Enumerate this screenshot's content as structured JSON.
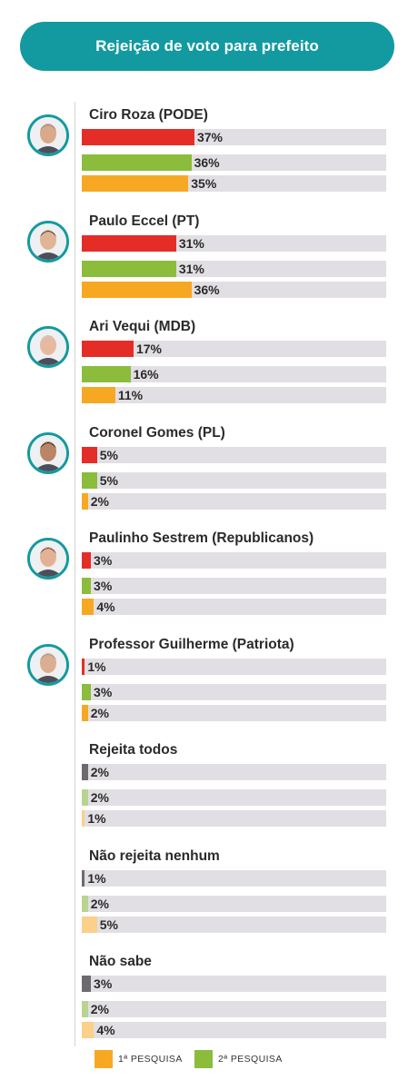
{
  "title": "Rejeição de voto para prefeito",
  "colors": {
    "header": "#139aa0",
    "track": "#e1dfe3",
    "series_strong": [
      "#e52d27",
      "#8cbc3b",
      "#f7a823"
    ],
    "series_muted": [
      "#6c6a6e",
      "#b8d48f",
      "#fbd08a"
    ]
  },
  "chart_data": {
    "type": "bar",
    "orientation": "horizontal",
    "xlim": [
      0,
      100
    ],
    "unit": "%",
    "series": [
      {
        "name": "",
        "values": [
          37,
          31,
          17,
          5,
          3,
          1,
          2,
          1,
          3
        ]
      },
      {
        "name": "",
        "values": [
          36,
          31,
          16,
          5,
          3,
          3,
          2,
          2,
          2
        ]
      },
      {
        "name": "",
        "values": [
          35,
          36,
          11,
          2,
          4,
          2,
          1,
          5,
          4
        ]
      }
    ],
    "categories": [
      {
        "label": "Ciro Roza (PODE)",
        "photo": true,
        "values": [
          "37%",
          "36%",
          "35%"
        ]
      },
      {
        "label": "Paulo Eccel (PT)",
        "photo": true,
        "values": [
          "31%",
          "31%",
          "36%"
        ]
      },
      {
        "label": "Ari Vequi (MDB)",
        "photo": true,
        "values": [
          "17%",
          "16%",
          "11%"
        ]
      },
      {
        "label": "Coronel Gomes (PL)",
        "photo": true,
        "values": [
          "5%",
          "5%",
          "2%"
        ]
      },
      {
        "label": "Paulinho Sestrem (Republicanos)",
        "photo": true,
        "values": [
          "3%",
          "3%",
          "4%"
        ]
      },
      {
        "label": "Professor Guilherme (Patriota)",
        "photo": true,
        "values": [
          "1%",
          "3%",
          "2%"
        ]
      },
      {
        "label": "Rejeita todos",
        "photo": false,
        "values": [
          "2%",
          "2%",
          "1%"
        ]
      },
      {
        "label": "Não rejeita nenhum",
        "photo": false,
        "values": [
          "1%",
          "2%",
          "5%"
        ]
      },
      {
        "label": "Não sabe",
        "photo": false,
        "values": [
          "3%",
          "2%",
          "4%"
        ]
      }
    ],
    "legend": [
      {
        "label": "1ª PESQUISA",
        "color": "#f7a823"
      },
      {
        "label": "2ª PESQUISA",
        "color": "#8cbc3b"
      }
    ]
  }
}
